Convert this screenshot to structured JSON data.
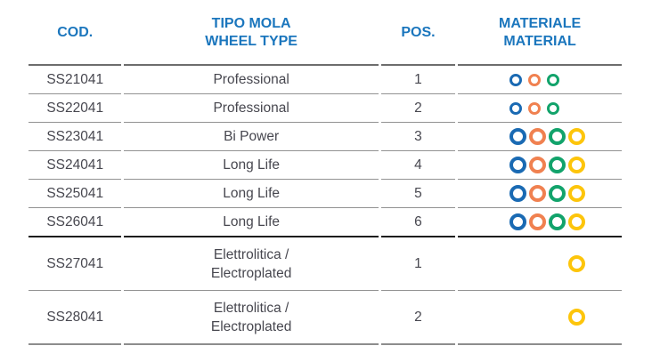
{
  "colors": {
    "header_text": "#1b76bd",
    "body_text": "#47474f",
    "circle_blue": "#1a6ab3",
    "circle_orange": "#f08150",
    "circle_green": "#12a36b",
    "circle_yellow": "#fdc50b",
    "row_line": "#929292",
    "thick_line": "#1d1d1d"
  },
  "table": {
    "headers": [
      {
        "id": "cod",
        "label": "COD."
      },
      {
        "id": "wheel_type",
        "label_lines": [
          "TIPO MOLA",
          "WHEEL TYPE"
        ]
      },
      {
        "id": "pos",
        "label": "POS."
      },
      {
        "id": "material",
        "label_lines": [
          "MATERIALE",
          "MATERIAL"
        ]
      }
    ],
    "rows": [
      {
        "cod": "SS21041",
        "wheel_type_lines": [
          "Professional"
        ],
        "pos": "1",
        "material_slots": [
          "blue",
          "orange",
          "green"
        ],
        "circle_size": "small",
        "separator": "thin",
        "tall": false
      },
      {
        "cod": "SS22041",
        "wheel_type_lines": [
          "Professional"
        ],
        "pos": "2",
        "material_slots": [
          "blue",
          "orange",
          "green"
        ],
        "circle_size": "small",
        "separator": "thin",
        "tall": false
      },
      {
        "cod": "SS23041",
        "wheel_type_lines": [
          "Bi Power"
        ],
        "pos": "3",
        "material_slots": [
          "blue",
          "orange",
          "green",
          "yellow"
        ],
        "circle_size": "large",
        "separator": "thin",
        "tall": false
      },
      {
        "cod": "SS24041",
        "wheel_type_lines": [
          "Long Life"
        ],
        "pos": "4",
        "material_slots": [
          "blue",
          "orange",
          "green",
          "yellow"
        ],
        "circle_size": "large",
        "separator": "thin",
        "tall": false
      },
      {
        "cod": "SS25041",
        "wheel_type_lines": [
          "Long Life"
        ],
        "pos": "5",
        "material_slots": [
          "blue",
          "orange",
          "green",
          "yellow"
        ],
        "circle_size": "large",
        "separator": "thin",
        "tall": false
      },
      {
        "cod": "SS26041",
        "wheel_type_lines": [
          "Long Life"
        ],
        "pos": "6",
        "material_slots": [
          "blue",
          "orange",
          "green",
          "yellow"
        ],
        "circle_size": "large",
        "separator": "thick",
        "tall": false
      },
      {
        "cod": "SS27041",
        "wheel_type_lines": [
          "Elettrolitica /",
          "Electroplated"
        ],
        "pos": "1",
        "material_slots": [
          null,
          null,
          null,
          "yellow"
        ],
        "circle_size": "large",
        "separator": "thin",
        "tall": true
      },
      {
        "cod": "SS28041",
        "wheel_type_lines": [
          "Elettrolitica /",
          "Electroplated"
        ],
        "pos": "2",
        "material_slots": [
          null,
          null,
          null,
          "yellow"
        ],
        "circle_size": "large",
        "separator": "bottom",
        "tall": true
      }
    ]
  }
}
